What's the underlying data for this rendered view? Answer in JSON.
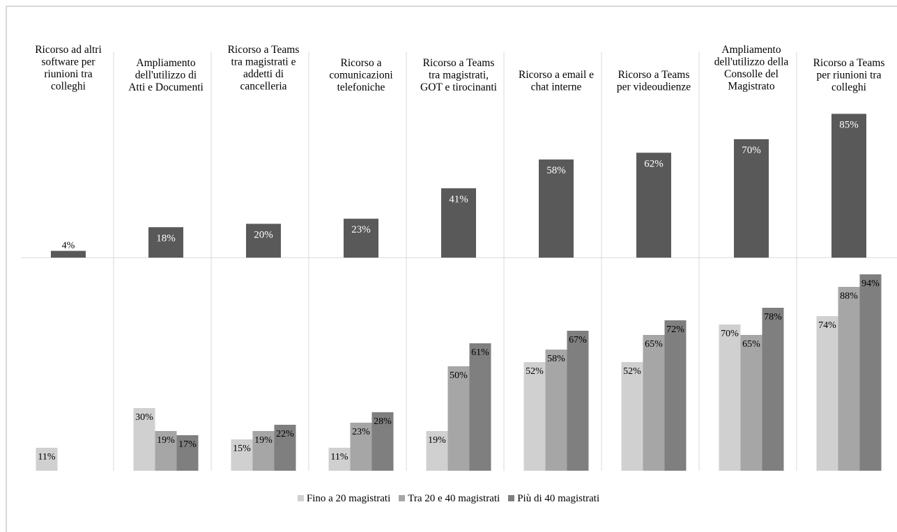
{
  "chart_data": {
    "type": "bar",
    "categories": [
      "Ricorso ad altri software per riunioni tra colleghi",
      "Ampliamento dell'utilizzo di Atti e Documenti",
      "Ricorso a Teams tra magistrati e addetti di cancelleria",
      "Ricorso a comunicazioni telefoniche",
      "Ricorso a Teams tra magistrati, GOT e tirocinanti",
      "Ricorso a email e chat interne",
      "Ricorso a Teams per videoudienze",
      "Ampliamento dell'utilizzo della Consolle del Magistrato",
      "Ricorso a Teams per riunioni tra colleghi"
    ],
    "category_label_lines": [
      [
        "Ricorso ad altri",
        "software per",
        "riunioni tra",
        "colleghi"
      ],
      [
        "Ampliamento",
        "dell'utilizzo di",
        "Atti e Documenti"
      ],
      [
        "Ricorso a Teams",
        "tra magistrati e",
        "addetti di",
        "cancelleria"
      ],
      [
        "Ricorso a",
        "comunicazioni",
        "telefoniche"
      ],
      [
        "Ricorso a Teams",
        "tra magistrati,",
        "GOT e tirocinanti"
      ],
      [
        "Ricorso a email e",
        "chat interne"
      ],
      [
        "Ricorso a Teams",
        "per videoudienze"
      ],
      [
        "Ampliamento",
        "dell'utilizzo della",
        "Consolle del",
        "Magistrato"
      ],
      [
        "Ricorso a Teams",
        "per riunioni tra",
        "colleghi"
      ]
    ],
    "total": {
      "values": [
        4,
        18,
        20,
        23,
        41,
        58,
        62,
        70,
        85
      ],
      "labels": [
        "4%",
        "18%",
        "20%",
        "23%",
        "41%",
        "58%",
        "62%",
        "70%",
        "85%"
      ],
      "color": "#595959"
    },
    "series": [
      {
        "name": "Fino a 20 magistrati",
        "color": "#d0d0d0",
        "values": [
          11,
          30,
          15,
          11,
          19,
          52,
          52,
          70,
          74
        ],
        "labels": [
          "11%",
          "30%",
          "15%",
          "11%",
          "19%",
          "52%",
          "52%",
          "70%",
          "74%"
        ]
      },
      {
        "name": "Tra 20 e 40 magistrati",
        "color": "#a6a6a6",
        "values": [
          null,
          19,
          19,
          23,
          50,
          58,
          65,
          65,
          88
        ],
        "labels": [
          "",
          "19%",
          "19%",
          "23%",
          "50%",
          "58%",
          "65%",
          "65%",
          "88%"
        ]
      },
      {
        "name": "Più di 40 magistrati",
        "color": "#7f7f7f",
        "values": [
          null,
          17,
          22,
          28,
          61,
          67,
          72,
          78,
          94
        ],
        "labels": [
          "",
          "17%",
          "22%",
          "28%",
          "61%",
          "67%",
          "72%",
          "78%",
          "94%"
        ]
      }
    ],
    "legend_position": "bottom",
    "grid": false
  }
}
